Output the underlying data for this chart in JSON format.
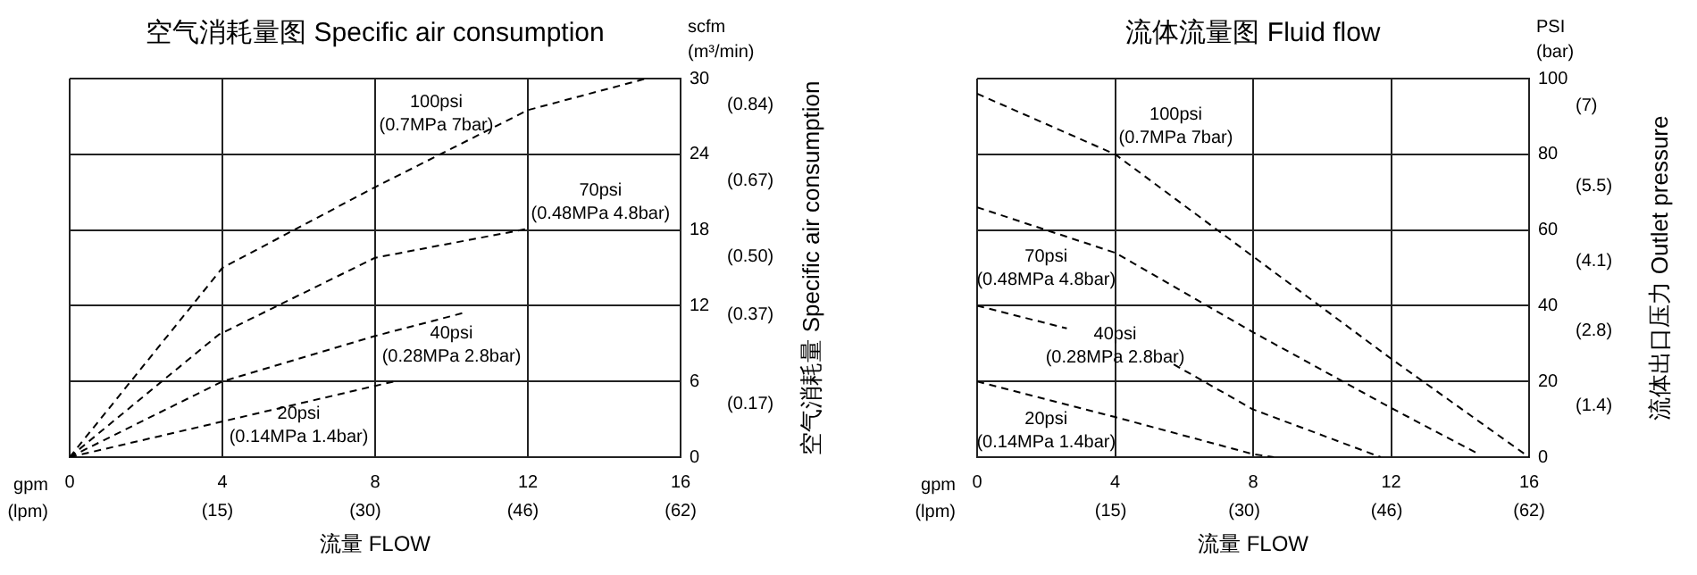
{
  "chart_data": [
    {
      "type": "line",
      "title": "空气消耗量图 Specific air consumption",
      "xlabel": "流量 FLOW",
      "y2label": "空气消耗量 Specific air consumption",
      "xlim": [
        0,
        16
      ],
      "xticks": [
        0,
        4,
        8,
        12,
        16
      ],
      "x2lim": [
        0,
        62
      ],
      "x2ticks": [
        {
          "value": 15,
          "label": "(15)"
        },
        {
          "value": 30,
          "label": "(30)"
        },
        {
          "value": 46,
          "label": "(46)"
        },
        {
          "value": 62,
          "label": "(62)"
        }
      ],
      "ylim": [
        0,
        30
      ],
      "yticks": [
        0,
        6,
        12,
        18,
        24,
        30
      ],
      "y2lim": [
        0.05,
        0.9
      ],
      "y2ticks": [
        {
          "value": 0.17,
          "label": "(0.17)"
        },
        {
          "value": 0.37,
          "label": "(0.37)"
        },
        {
          "value": 0.5,
          "label": "(0.50)"
        },
        {
          "value": 0.67,
          "label": "(0.67)"
        },
        {
          "value": 0.84,
          "label": "(0.84)"
        }
      ],
      "grid": true,
      "legend": false,
      "marker": "none",
      "line_style": "dashed",
      "series": [
        {
          "color": "#000000",
          "x": [
            0,
            4,
            8,
            12,
            15.1
          ],
          "values": [
            0,
            15,
            21.4,
            27.5,
            30
          ]
        },
        {
          "color": "#000000",
          "x": [
            0,
            3.9,
            8,
            12
          ],
          "values": [
            0,
            9.7,
            15.8,
            18.1
          ]
        },
        {
          "color": "#000000",
          "x": [
            0,
            4,
            8,
            10.4
          ],
          "values": [
            0,
            6,
            9.6,
            11.5
          ]
        },
        {
          "color": "#000000",
          "x": [
            0,
            8.5
          ],
          "values": [
            0,
            6
          ]
        }
      ],
      "annotations": [
        "gpm\n(lpm)",
        "scfm\n(m³/min)",
        "100psi\n(0.7MPa 7bar)",
        "70psi\n(0.48MPa 4.8bar)",
        "40psi\n(0.28MPa 2.8bar)",
        "20psi\n(0.14MPa 1.4bar)"
      ]
    },
    {
      "type": "line",
      "title": "流体流量图 Fluid flow",
      "xlabel": "流量 FLOW",
      "y2label": "流体出口压力 Outlet pressure",
      "xlim": [
        0,
        16
      ],
      "xticks": [
        0,
        4,
        8,
        12,
        16
      ],
      "x2lim": [
        0,
        62
      ],
      "x2ticks": [
        {
          "value": 15,
          "label": "(15)"
        },
        {
          "value": 30,
          "label": "(30)"
        },
        {
          "value": 46,
          "label": "(46)"
        },
        {
          "value": 62,
          "label": "(62)"
        }
      ],
      "ylim": [
        0,
        100
      ],
      "yticks": [
        0,
        20,
        40,
        60,
        80,
        100
      ],
      "y2lim": [
        0.45,
        7.5
      ],
      "y2ticks": [
        {
          "value": 1.4,
          "label": "(1.4)"
        },
        {
          "value": 2.8,
          "label": "(2.8)"
        },
        {
          "value": 4.1,
          "label": "(4.1)"
        },
        {
          "value": 5.5,
          "label": "(5.5)"
        },
        {
          "value": 7,
          "label": "(7)"
        }
      ],
      "grid": true,
      "legend": false,
      "marker": "none",
      "line_style": "dashed",
      "series": [
        {
          "color": "#000000",
          "x": [
            0,
            4,
            8,
            12,
            16
          ],
          "values": [
            96,
            80,
            53,
            26,
            0
          ]
        },
        {
          "color": "#000000",
          "x": [
            0,
            4,
            8,
            12,
            14.5
          ],
          "values": [
            66,
            54,
            33,
            13,
            1
          ]
        },
        {
          "color": "#000000",
          "x": [
            0,
            2.6,
            4,
            5.7,
            8,
            11.7
          ],
          "values": [
            40,
            34,
            null,
            24.5,
            12.6,
            0
          ]
        },
        {
          "color": "#000000",
          "x": [
            0,
            4,
            8,
            8.6
          ],
          "values": [
            20,
            10.6,
            0.8,
            0
          ]
        }
      ],
      "annotations": [
        "gpm\n(lpm)",
        "PSI\n(bar)",
        "100psi\n(0.7MPa 7bar)",
        "70psi\n(0.48MPa 4.8bar)",
        "40psi\n(0.28MPa 2.8bar)",
        "20psi\n(0.14MPa 1.4bar)"
      ]
    }
  ]
}
